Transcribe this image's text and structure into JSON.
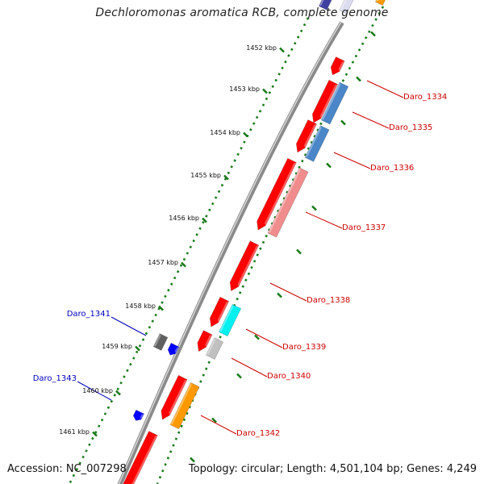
{
  "title": "Dechloromonas aromatica RCB, complete genome",
  "footer": {
    "accession": "Accession: NC_007298",
    "summary": "Topology: circular; Length: 4,501,104 bp; Genes: 4,249"
  },
  "colors": {
    "backbone": "#8a8a8a",
    "tick_dots": "#1a7a1a",
    "forward_label": "#cc0000",
    "reverse_label": "#0000bb"
  },
  "ticks": [
    {
      "label": "1452 kbp"
    },
    {
      "label": "1453 kbp"
    },
    {
      "label": "1454 kbp"
    },
    {
      "label": "1455 kbp"
    },
    {
      "label": "1456 kbp"
    },
    {
      "label": "1457 kbp"
    },
    {
      "label": "1458 kbp"
    },
    {
      "label": "1459 kbp"
    },
    {
      "label": "1460 kbp"
    },
    {
      "label": "1461 kbp"
    }
  ],
  "gene_labels": [
    {
      "id": "Daro_1334",
      "strand": "forward"
    },
    {
      "id": "Daro_1335",
      "strand": "forward"
    },
    {
      "id": "Daro_1336",
      "strand": "forward"
    },
    {
      "id": "Daro_1337",
      "strand": "forward"
    },
    {
      "id": "Daro_1338",
      "strand": "forward"
    },
    {
      "id": "Daro_1339",
      "strand": "forward"
    },
    {
      "id": "Daro_1340",
      "strand": "forward"
    },
    {
      "id": "Daro_1341",
      "strand": "reverse"
    },
    {
      "id": "Daro_1342",
      "strand": "forward"
    },
    {
      "id": "Daro_1343",
      "strand": "reverse"
    }
  ],
  "feature_colors": {
    "cds": "#ff0000",
    "blue": "#4a86c8",
    "pink": "#f08c8c",
    "cyan": "#00f0f0",
    "grey": "#c0c0c0",
    "dark_grey": "#606060",
    "orange": "#ff9900",
    "rev": "#0000ff",
    "navy": "#4040a0"
  }
}
